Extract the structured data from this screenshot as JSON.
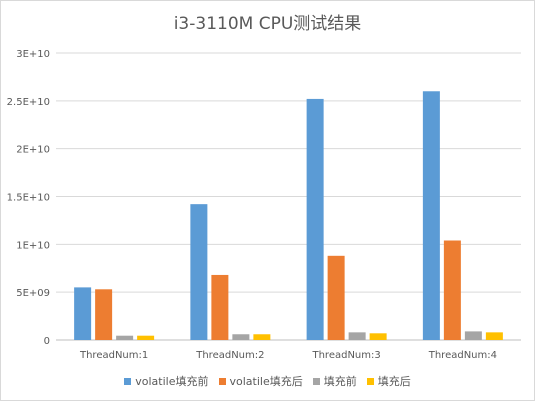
{
  "chart_data": {
    "type": "bar",
    "title": "i3-3110M CPU测试结果",
    "xlabel": "",
    "ylabel": "",
    "categories": [
      "ThreadNum:1",
      "ThreadNum:2",
      "ThreadNum:3",
      "ThreadNum:4"
    ],
    "series": [
      {
        "name": "volatile填充前",
        "color": "#5B9BD5",
        "values": [
          5500000000.0,
          14200000000.0,
          25200000000.0,
          26000000000.0
        ]
      },
      {
        "name": "volatile填充后",
        "color": "#ED7D31",
        "values": [
          5300000000.0,
          6800000000.0,
          8800000000.0,
          10400000000.0
        ]
      },
      {
        "name": "填充前",
        "color": "#A5A5A5",
        "values": [
          450000000.0,
          600000000.0,
          800000000.0,
          900000000.0
        ]
      },
      {
        "name": "填充后",
        "color": "#FFC000",
        "values": [
          450000000.0,
          600000000.0,
          700000000.0,
          800000000.0
        ]
      }
    ],
    "ylim": [
      0,
      30000000000.0
    ],
    "yticks": [
      {
        "value": 0,
        "label": "0"
      },
      {
        "value": 5000000000.0,
        "label": "5E+09"
      },
      {
        "value": 10000000000.0,
        "label": "1E+10"
      },
      {
        "value": 15000000000.0,
        "label": "1.5E+10"
      },
      {
        "value": 20000000000.0,
        "label": "2E+10"
      },
      {
        "value": 25000000000.0,
        "label": "2.5E+10"
      },
      {
        "value": 30000000000.0,
        "label": "3E+10"
      }
    ],
    "grid": true,
    "legend_position": "bottom"
  }
}
